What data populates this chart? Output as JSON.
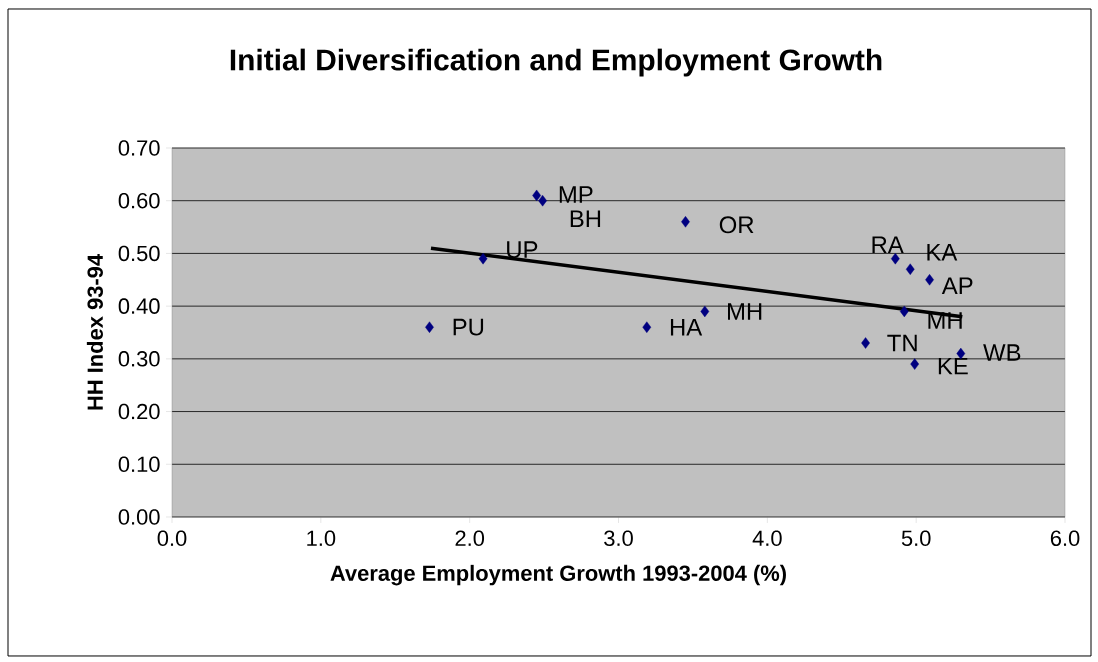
{
  "chart_data": {
    "type": "scatter",
    "title": "Initial Diversification and Employment Growth",
    "xlabel": "Average Employment Growth 1993-2004 (%)",
    "ylabel": "HH Index 93-94",
    "xlim": [
      0,
      6
    ],
    "ylim": [
      0,
      0.7
    ],
    "xticks": [
      {
        "value": 0,
        "label": "0.0"
      },
      {
        "value": 1,
        "label": "1.0"
      },
      {
        "value": 2,
        "label": "2.0"
      },
      {
        "value": 3,
        "label": "3.0"
      },
      {
        "value": 4,
        "label": "4.0"
      },
      {
        "value": 5,
        "label": "5.0"
      },
      {
        "value": 6,
        "label": "6.0"
      }
    ],
    "yticks": [
      {
        "value": 0,
        "label": "0.00"
      },
      {
        "value": 0.1,
        "label": "0.10"
      },
      {
        "value": 0.2,
        "label": "0.20"
      },
      {
        "value": 0.3,
        "label": "0.30"
      },
      {
        "value": 0.4,
        "label": "0.40"
      },
      {
        "value": 0.5,
        "label": "0.50"
      },
      {
        "value": 0.6,
        "label": "0.60"
      },
      {
        "value": 0.7,
        "label": "0.70"
      }
    ],
    "grid": "y",
    "series": [
      {
        "color": "#000080",
        "marker": "diamond",
        "x": [
          1.73,
          2.09,
          2.45,
          2.49,
          3.45,
          3.19,
          3.58,
          4.86,
          4.96,
          5.09,
          4.92,
          4.66,
          4.99,
          5.3
        ],
        "values": [
          0.36,
          0.49,
          0.61,
          0.6,
          0.56,
          0.36,
          0.39,
          0.49,
          0.47,
          0.45,
          0.39,
          0.33,
          0.29,
          0.31
        ]
      },
      {
        "type": "line",
        "color": "#000000",
        "marker": "none",
        "line_style": "solid",
        "x": [
          1.74,
          5.31
        ],
        "values": [
          0.51,
          0.38
        ]
      }
    ],
    "annotations": [
      {
        "text": "PU",
        "x": 1.73,
        "y": 0.36
      },
      {
        "text": "UP",
        "x": 2.09,
        "y": 0.49
      },
      {
        "text": "MP",
        "x": 2.45,
        "y": 0.61
      },
      {
        "text": "BH",
        "x": 2.49,
        "y": 0.6
      },
      {
        "text": "OR",
        "x": 3.45,
        "y": 0.56
      },
      {
        "text": "HA",
        "x": 3.19,
        "y": 0.36
      },
      {
        "text": "MH",
        "x": 3.58,
        "y": 0.39
      },
      {
        "text": "RA",
        "x": 4.86,
        "y": 0.49
      },
      {
        "text": "KA",
        "x": 4.96,
        "y": 0.47
      },
      {
        "text": "AP",
        "x": 5.09,
        "y": 0.45
      },
      {
        "text": "MH",
        "x": 4.92,
        "y": 0.39
      },
      {
        "text": "TN",
        "x": 4.66,
        "y": 0.33
      },
      {
        "text": "KE",
        "x": 4.99,
        "y": 0.29
      },
      {
        "text": "WB",
        "x": 5.3,
        "y": 0.31
      }
    ]
  }
}
